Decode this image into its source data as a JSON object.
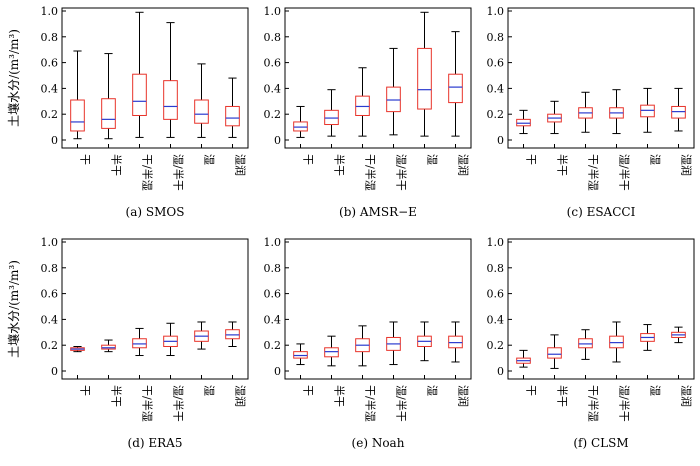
{
  "figure": {
    "ylabel": "土壤水分/(m³/m³)",
    "yticks": [
      "0",
      "0.2",
      "0.4",
      "0.6",
      "0.8",
      "1.0"
    ],
    "categories": [
      "干",
      "半干",
      "干/半湿",
      "湿/半干",
      "湿",
      "湿润"
    ],
    "colors": {
      "box": "#e8332a",
      "median": "#2b3bcf",
      "whisker": "#000000",
      "frame": "#000000"
    }
  },
  "chart_data": [
    {
      "type": "box",
      "caption": "(a) SMOS",
      "ylim": [
        0,
        1.0
      ],
      "categories": [
        "干",
        "半干",
        "干/半湿",
        "湿/半干",
        "湿",
        "湿润"
      ],
      "boxes": [
        {
          "min": 0.01,
          "q1": 0.07,
          "median": 0.14,
          "q3": 0.31,
          "max": 0.69
        },
        {
          "min": 0.01,
          "q1": 0.09,
          "median": 0.16,
          "q3": 0.32,
          "max": 0.67
        },
        {
          "min": 0.02,
          "q1": 0.19,
          "median": 0.3,
          "q3": 0.51,
          "max": 0.99
        },
        {
          "min": 0.02,
          "q1": 0.16,
          "median": 0.26,
          "q3": 0.46,
          "max": 0.91
        },
        {
          "min": 0.02,
          "q1": 0.13,
          "median": 0.2,
          "q3": 0.31,
          "max": 0.59
        },
        {
          "min": 0.02,
          "q1": 0.11,
          "median": 0.17,
          "q3": 0.26,
          "max": 0.48
        }
      ]
    },
    {
      "type": "box",
      "caption": "(b) AMSR−E",
      "ylim": [
        0,
        1.0
      ],
      "categories": [
        "干",
        "半干",
        "干/半湿",
        "湿/半干",
        "湿",
        "湿润"
      ],
      "boxes": [
        {
          "min": 0.02,
          "q1": 0.07,
          "median": 0.1,
          "q3": 0.14,
          "max": 0.26
        },
        {
          "min": 0.03,
          "q1": 0.12,
          "median": 0.17,
          "q3": 0.23,
          "max": 0.39
        },
        {
          "min": 0.03,
          "q1": 0.19,
          "median": 0.26,
          "q3": 0.34,
          "max": 0.56
        },
        {
          "min": 0.04,
          "q1": 0.22,
          "median": 0.31,
          "q3": 0.41,
          "max": 0.71
        },
        {
          "min": 0.03,
          "q1": 0.24,
          "median": 0.39,
          "q3": 0.71,
          "max": 0.99
        },
        {
          "min": 0.03,
          "q1": 0.29,
          "median": 0.41,
          "q3": 0.51,
          "max": 0.84
        }
      ]
    },
    {
      "type": "box",
      "caption": "(c) ESACCI",
      "ylim": [
        0,
        1.0
      ],
      "categories": [
        "干",
        "半干",
        "干/半湿",
        "湿/半干",
        "湿",
        "湿润"
      ],
      "boxes": [
        {
          "min": 0.05,
          "q1": 0.11,
          "median": 0.13,
          "q3": 0.16,
          "max": 0.23
        },
        {
          "min": 0.05,
          "q1": 0.14,
          "median": 0.17,
          "q3": 0.2,
          "max": 0.3
        },
        {
          "min": 0.06,
          "q1": 0.17,
          "median": 0.21,
          "q3": 0.25,
          "max": 0.37
        },
        {
          "min": 0.05,
          "q1": 0.17,
          "median": 0.21,
          "q3": 0.25,
          "max": 0.39
        },
        {
          "min": 0.06,
          "q1": 0.18,
          "median": 0.23,
          "q3": 0.27,
          "max": 0.4
        },
        {
          "min": 0.07,
          "q1": 0.17,
          "median": 0.22,
          "q3": 0.26,
          "max": 0.4
        }
      ]
    },
    {
      "type": "box",
      "caption": "(d) ERA5",
      "ylim": [
        0,
        1.0
      ],
      "categories": [
        "干",
        "半干",
        "干/半湿",
        "湿/半干",
        "湿",
        "湿润"
      ],
      "boxes": [
        {
          "min": 0.15,
          "q1": 0.16,
          "median": 0.17,
          "q3": 0.18,
          "max": 0.19
        },
        {
          "min": 0.15,
          "q1": 0.17,
          "median": 0.18,
          "q3": 0.2,
          "max": 0.24
        },
        {
          "min": 0.12,
          "q1": 0.18,
          "median": 0.21,
          "q3": 0.25,
          "max": 0.33
        },
        {
          "min": 0.12,
          "q1": 0.19,
          "median": 0.23,
          "q3": 0.27,
          "max": 0.37
        },
        {
          "min": 0.17,
          "q1": 0.23,
          "median": 0.27,
          "q3": 0.31,
          "max": 0.38
        },
        {
          "min": 0.19,
          "q1": 0.25,
          "median": 0.28,
          "q3": 0.32,
          "max": 0.38
        }
      ]
    },
    {
      "type": "box",
      "caption": "(e) Noah",
      "ylim": [
        0,
        1.0
      ],
      "categories": [
        "干",
        "半干",
        "干/半湿",
        "湿/半干",
        "湿",
        "湿润"
      ],
      "boxes": [
        {
          "min": 0.05,
          "q1": 0.1,
          "median": 0.12,
          "q3": 0.15,
          "max": 0.21
        },
        {
          "min": 0.04,
          "q1": 0.11,
          "median": 0.15,
          "q3": 0.18,
          "max": 0.27
        },
        {
          "min": 0.04,
          "q1": 0.15,
          "median": 0.2,
          "q3": 0.25,
          "max": 0.35
        },
        {
          "min": 0.05,
          "q1": 0.16,
          "median": 0.21,
          "q3": 0.26,
          "max": 0.38
        },
        {
          "min": 0.08,
          "q1": 0.19,
          "median": 0.23,
          "q3": 0.27,
          "max": 0.38
        },
        {
          "min": 0.07,
          "q1": 0.18,
          "median": 0.22,
          "q3": 0.27,
          "max": 0.38
        }
      ]
    },
    {
      "type": "box",
      "caption": "(f) CLSM",
      "ylim": [
        0,
        1.0
      ],
      "categories": [
        "干",
        "半干",
        "干/半湿",
        "湿/半干",
        "湿",
        "湿润"
      ],
      "boxes": [
        {
          "min": 0.03,
          "q1": 0.06,
          "median": 0.08,
          "q3": 0.1,
          "max": 0.16
        },
        {
          "min": 0.02,
          "q1": 0.1,
          "median": 0.13,
          "q3": 0.18,
          "max": 0.28
        },
        {
          "min": 0.09,
          "q1": 0.18,
          "median": 0.21,
          "q3": 0.25,
          "max": 0.32
        },
        {
          "min": 0.07,
          "q1": 0.18,
          "median": 0.22,
          "q3": 0.27,
          "max": 0.38
        },
        {
          "min": 0.16,
          "q1": 0.23,
          "median": 0.26,
          "q3": 0.29,
          "max": 0.36
        },
        {
          "min": 0.22,
          "q1": 0.26,
          "median": 0.28,
          "q3": 0.3,
          "max": 0.34
        }
      ]
    }
  ]
}
